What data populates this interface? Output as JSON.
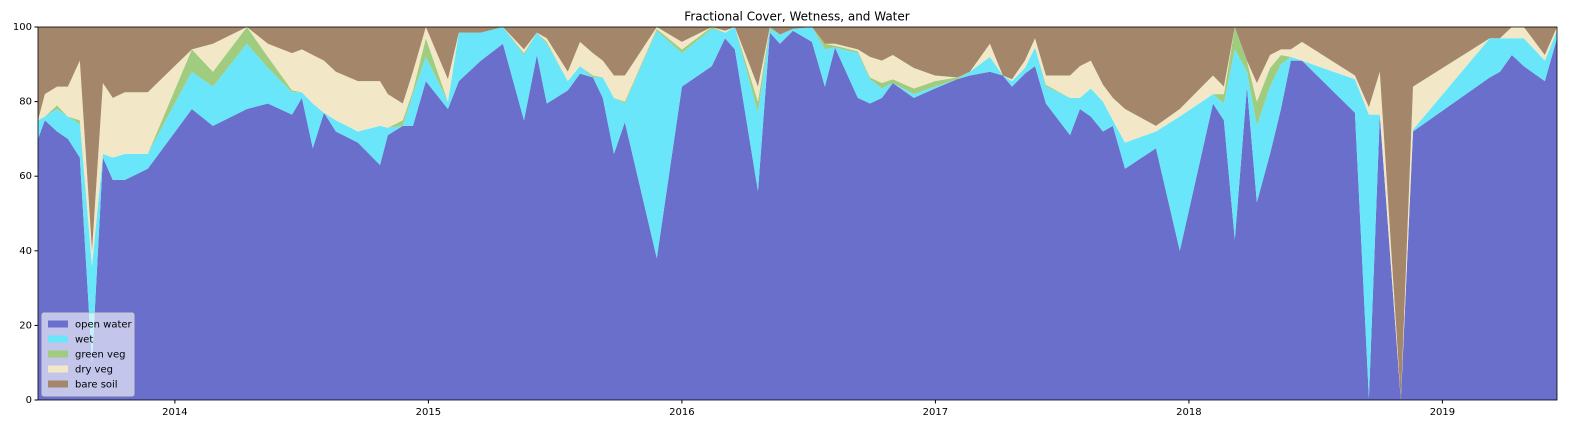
{
  "chart_data": {
    "type": "area",
    "stacked": true,
    "title": "Fractional Cover, Wetness, and Water",
    "x": [
      2013.46,
      2013.487,
      2013.535,
      2013.578,
      2013.625,
      2013.673,
      2013.716,
      2013.755,
      2013.803,
      2013.893,
      2014.067,
      2014.15,
      2014.284,
      2014.367,
      2014.462,
      2014.501,
      2014.544,
      2014.588,
      2014.635,
      2014.722,
      2014.809,
      2014.84,
      2014.899,
      2014.939,
      2014.99,
      2015.077,
      2015.12,
      2015.207,
      2015.294,
      2015.377,
      2015.428,
      2015.467,
      2015.55,
      2015.598,
      2015.649,
      2015.688,
      2015.732,
      2015.775,
      2015.901,
      2016.0,
      2016.118,
      2016.17,
      2016.209,
      2016.3,
      2016.347,
      2016.387,
      2016.438,
      2016.513,
      2016.564,
      2016.604,
      2016.694,
      2016.742,
      2016.789,
      2016.832,
      2016.915,
      2016.998,
      2017.085,
      2017.136,
      2017.215,
      2017.266,
      2017.302,
      2017.353,
      2017.393,
      2017.436,
      2017.531,
      2017.57,
      2017.613,
      2017.661,
      2017.7,
      2017.748,
      2017.87,
      2017.964,
      2018.095,
      2018.138,
      2018.181,
      2018.229,
      2018.268,
      2018.32,
      2018.363,
      2018.402,
      2018.446,
      2018.655,
      2018.71,
      2018.753,
      2018.836,
      2018.884,
      2019.187,
      2019.227,
      2019.274,
      2019.321,
      2019.404,
      2019.452
    ],
    "series": [
      {
        "name": "open water",
        "color": "#6a6fcc",
        "values": [
          70,
          75,
          72,
          70,
          65,
          10,
          65,
          59,
          59,
          62,
          78,
          73.5,
          78,
          79.5,
          76.5,
          81,
          67.5,
          77,
          72,
          69,
          63,
          71,
          73.5,
          73.5,
          85.5,
          78,
          85.5,
          91,
          95.5,
          75,
          92.5,
          79.5,
          83,
          87.5,
          86.5,
          81,
          66,
          74.5,
          38,
          84,
          89.5,
          97,
          94,
          56,
          98.5,
          95.5,
          99,
          96,
          84,
          94.5,
          81,
          79.5,
          81,
          85,
          81,
          83.5,
          86,
          87,
          88,
          87,
          84,
          87.5,
          89.5,
          79.5,
          71,
          78,
          76,
          72,
          73.5,
          62,
          67.5,
          40,
          79.5,
          75,
          43,
          84,
          53,
          66,
          78,
          91,
          91,
          77,
          0.5,
          76.5,
          0,
          72,
          86.5,
          88,
          92.5,
          89.5,
          85.5,
          97
        ]
      },
      {
        "name": "wet",
        "color": "#69e6fa",
        "values": [
          5,
          1,
          6,
          6,
          9,
          26,
          1,
          6,
          7,
          4,
          10,
          10.5,
          17.5,
          9.5,
          6,
          1.5,
          12,
          0,
          3,
          3,
          10.5,
          2,
          0,
          8.5,
          6.5,
          2,
          13,
          7.5,
          4.5,
          17.5,
          6,
          16,
          2.5,
          2,
          0,
          5.5,
          15,
          5,
          61,
          9,
          10,
          1.5,
          6,
          21,
          1,
          2.5,
          0.5,
          4,
          10,
          0,
          12,
          6.5,
          2.5,
          0,
          1,
          0.5,
          0,
          1,
          4,
          0,
          1.5,
          1.5,
          5,
          4.5,
          10,
          3,
          7.5,
          8,
          1.5,
          7,
          4.5,
          36,
          2.5,
          4.5,
          51,
          4,
          20.5,
          18,
          12,
          1,
          0,
          9,
          76,
          0,
          0,
          0.5,
          10.5,
          9,
          4.5,
          7.5,
          5.5,
          2
        ]
      },
      {
        "name": "green veg",
        "color": "#a0cc80",
        "values": [
          0,
          0,
          1,
          0,
          1,
          0,
          0,
          0,
          0,
          0,
          6,
          4,
          4.5,
          3,
          0.5,
          0,
          0,
          0,
          0,
          0,
          0,
          0,
          1.5,
          1,
          5,
          0,
          0,
          0,
          0,
          0.5,
          0,
          0.5,
          0,
          0,
          0.5,
          0,
          0,
          0.5,
          0.5,
          1,
          0.5,
          0,
          0,
          3,
          0.5,
          0,
          0,
          0,
          1.5,
          0.5,
          0.5,
          0.5,
          1.5,
          1,
          1.5,
          1.5,
          0.5,
          0,
          0,
          0,
          0,
          0,
          0,
          0.5,
          0,
          0,
          0,
          0,
          0,
          0,
          0,
          0,
          0,
          2.5,
          6,
          3,
          6.5,
          5,
          2.5,
          0,
          0,
          0,
          0,
          0,
          0,
          0,
          0,
          0,
          0,
          0,
          0,
          0
        ]
      },
      {
        "name": "dry veg",
        "color": "#f2e8c8",
        "values": [
          0,
          6,
          5,
          8,
          16,
          4,
          19,
          16,
          16.5,
          16.5,
          0,
          7.5,
          0,
          3.5,
          10,
          11.5,
          13,
          14,
          13,
          13.5,
          12,
          9,
          4.5,
          5,
          3,
          6,
          0,
          0,
          0,
          1,
          0,
          1,
          2.5,
          6.5,
          6,
          4.5,
          6,
          7,
          0.5,
          2,
          0,
          0.5,
          0,
          4,
          0,
          0,
          0,
          0,
          0,
          0.5,
          0.5,
          5.5,
          6,
          6.5,
          5.5,
          1.5,
          0,
          0,
          3.5,
          0,
          0.5,
          2,
          2.5,
          2.5,
          6,
          8.5,
          7.5,
          4.5,
          6,
          9,
          1.5,
          2,
          5,
          2,
          0,
          0,
          5,
          3.5,
          1.5,
          2,
          5,
          1,
          2,
          11.5,
          0,
          11.5,
          0,
          0,
          3,
          3,
          1.5,
          1
        ]
      },
      {
        "name": "bare soil",
        "color": "#a4876a",
        "values": [
          25,
          18,
          16,
          16,
          9,
          60,
          15,
          19,
          17.5,
          17.5,
          6,
          4.5,
          0,
          4.5,
          7,
          6,
          7.5,
          9,
          12,
          14.5,
          14.5,
          18,
          20.5,
          12,
          0,
          14,
          1.5,
          1.5,
          0,
          6,
          1.5,
          3,
          12,
          4,
          7,
          9,
          13,
          13,
          0,
          4,
          0,
          1,
          0,
          16,
          0,
          2,
          0.5,
          0,
          4.5,
          4.5,
          6,
          8,
          9,
          7.5,
          11,
          13,
          13.5,
          12,
          4.5,
          13,
          14,
          9,
          3,
          13,
          13,
          10.5,
          9,
          15.5,
          19,
          22,
          26.5,
          22,
          13,
          16,
          0,
          9,
          15,
          7.5,
          6,
          6,
          4,
          13,
          21.5,
          12,
          100,
          16,
          3,
          3,
          0,
          0,
          7.5,
          0
        ]
      }
    ],
    "xlim": [
      2013.46,
      2019.452
    ],
    "xticks": [
      2014,
      2015,
      2016,
      2017,
      2018,
      2019
    ],
    "ylim": [
      0,
      100
    ],
    "yticks": [
      0,
      20,
      40,
      60,
      80,
      100
    ],
    "legend": "lower left"
  }
}
